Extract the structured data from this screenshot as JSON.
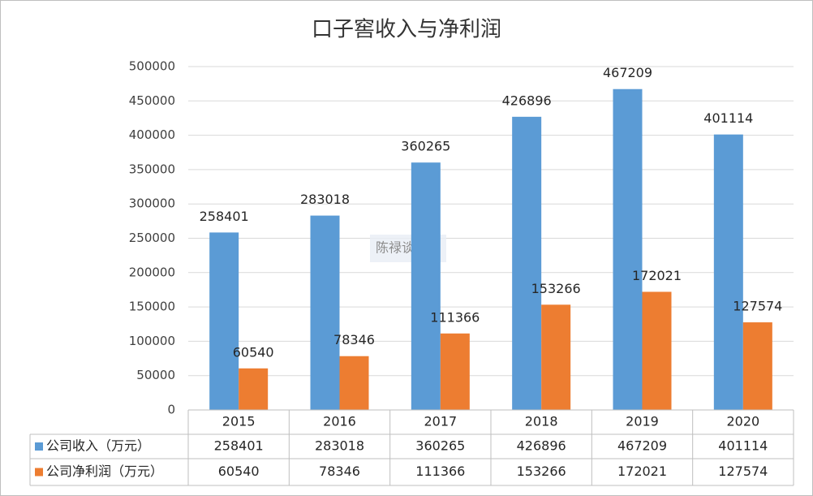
{
  "chart_data": {
    "type": "bar",
    "title": "口子窖收入与净利润",
    "categories": [
      "2015",
      "2016",
      "2017",
      "2018",
      "2019",
      "2020"
    ],
    "series": [
      {
        "name": "公司收入（万元）",
        "color": "#5b9bd5",
        "values": [
          258401,
          283018,
          360265,
          426896,
          467209,
          401114
        ]
      },
      {
        "name": "公司净利润（万元）",
        "color": "#ed7d31",
        "values": [
          60540,
          78346,
          111366,
          153266,
          172021,
          127574
        ]
      }
    ],
    "ylim": [
      0,
      500000
    ],
    "yticks": [
      0,
      50000,
      100000,
      150000,
      200000,
      250000,
      300000,
      350000,
      400000,
      450000,
      500000
    ],
    "grid": true,
    "watermark": "陈禄谈薪酬"
  }
}
